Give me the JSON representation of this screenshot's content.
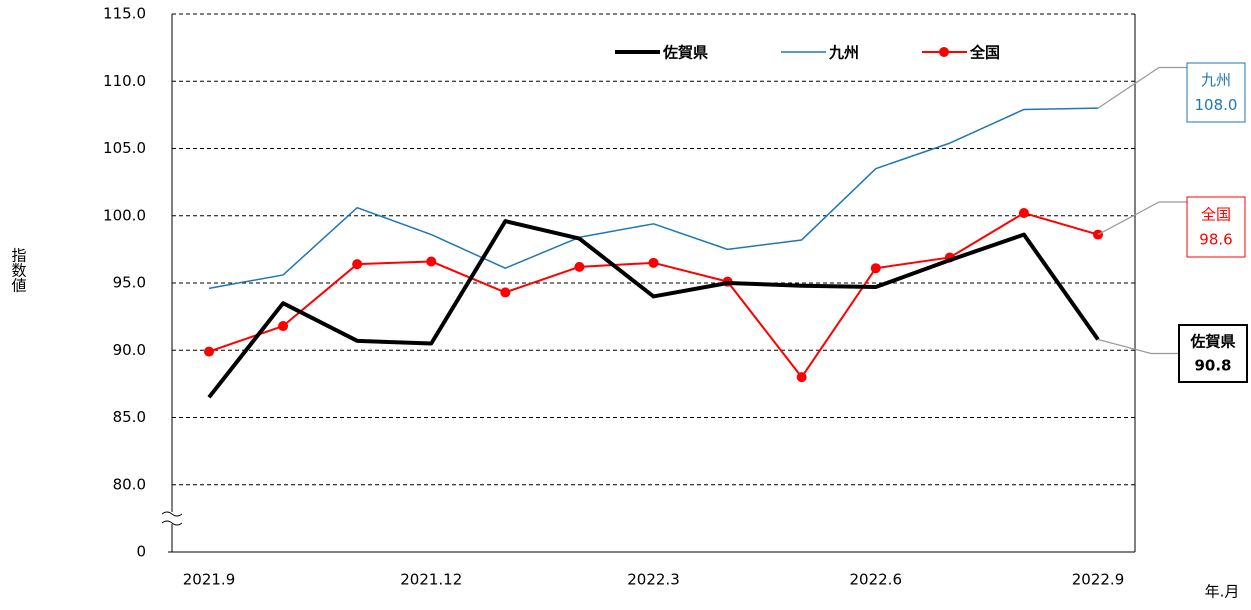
{
  "chart_data": {
    "type": "line",
    "y_label": "指数値",
    "x_label": "年.月",
    "categories": [
      "2021.9",
      null,
      null,
      "2021.12",
      null,
      null,
      "2022.3",
      null,
      null,
      "2022.6",
      null,
      null,
      "2022.9"
    ],
    "series": [
      {
        "name": "佐賀県",
        "color": "#000000",
        "values": [
          86.5,
          93.5,
          90.7,
          90.5,
          99.6,
          98.3,
          94.0,
          95.0,
          94.8,
          94.7,
          96.7,
          98.6,
          90.8
        ],
        "end_label": "90.8"
      },
      {
        "name": "九州",
        "color": "#1f77b4",
        "values": [
          94.6,
          95.6,
          100.6,
          98.6,
          96.1,
          98.4,
          99.4,
          97.5,
          98.2,
          103.5,
          105.4,
          107.9,
          108.0
        ],
        "end_label": "108.0"
      },
      {
        "name": "全国",
        "color": "#ff0000",
        "values": [
          89.9,
          91.8,
          96.4,
          96.6,
          94.3,
          96.2,
          96.5,
          95.1,
          88.0,
          96.1,
          96.9,
          100.2,
          98.6
        ],
        "end_label": "98.6"
      }
    ],
    "ylim": [
      0,
      115
    ],
    "yticks": [
      0,
      {
        "value": 80,
        "label": "80.0"
      },
      {
        "value": 85,
        "label": "85.0"
      },
      {
        "value": 90,
        "label": "90.0"
      },
      {
        "value": 95,
        "label": "95.0"
      },
      {
        "value": 100,
        "label": "100.0"
      },
      {
        "value": 105,
        "label": "105.0"
      },
      {
        "value": 110,
        "label": "110.0"
      },
      {
        "value": 115,
        "label": "115.0"
      }
    ],
    "y_break": true,
    "grid": true
  }
}
